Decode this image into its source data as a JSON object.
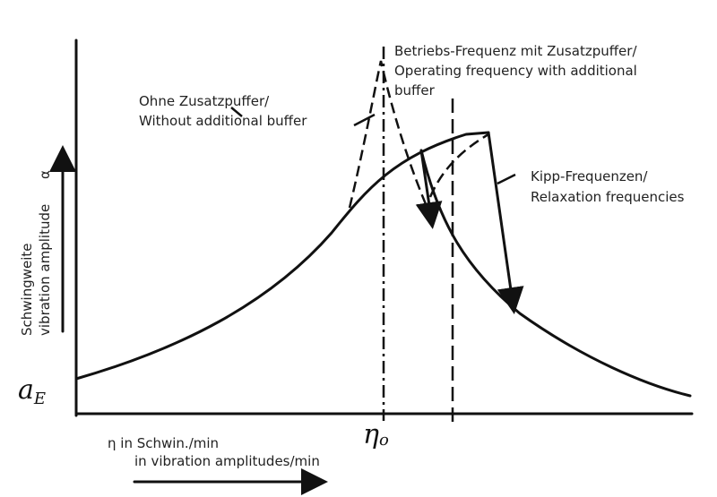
{
  "annotations": {
    "operating": [
      "Betriebs-Frequenz mit Zusatzpuffer/",
      "Operating frequency with additional",
      "buffer"
    ],
    "without": [
      "Ohne Zusatzpuffer/",
      "Without additional buffer"
    ],
    "relaxation": [
      "Kipp-Frequenzen/",
      "Relaxation frequencies"
    ],
    "a_e": "a",
    "a_e_sub": "E",
    "eta0": "η",
    "eta0_sub": "o"
  },
  "y_axis": {
    "label": [
      "Schwingweite",
      "vibration amplitude"
    ],
    "symbol": "α"
  },
  "x_axis": {
    "label": [
      "η in Schwin./min",
      "in vibration amplitudes/min"
    ]
  }
}
